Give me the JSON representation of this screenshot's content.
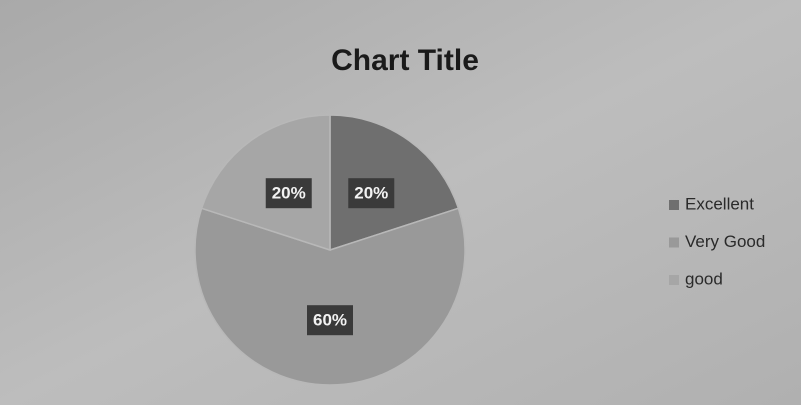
{
  "chart_data": {
    "type": "pie",
    "title": "Chart Title",
    "categories": [
      "Excellent",
      "Very Good",
      "good"
    ],
    "values": [
      20,
      60,
      20
    ],
    "value_labels": [
      "20%",
      "60%",
      "20%"
    ],
    "colors": [
      "#6f6f6f",
      "#999999",
      "#a6a6a6"
    ],
    "legend": "right"
  }
}
